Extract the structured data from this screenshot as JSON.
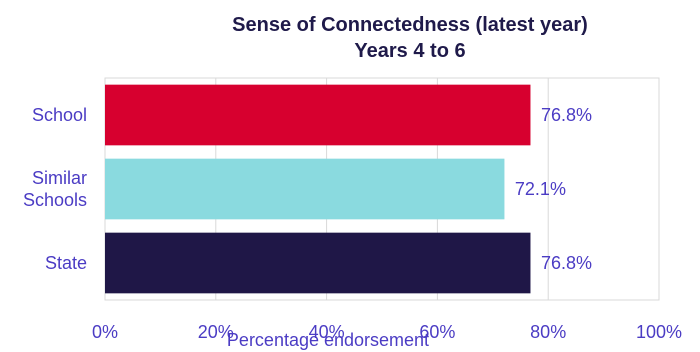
{
  "chart_data": {
    "type": "bar",
    "orientation": "horizontal",
    "title": "Sense of Connectedness (latest year)",
    "subtitle": "Years 4 to 6",
    "xlabel": "Percentage endorsement",
    "ylabel": "",
    "categories": [
      {
        "lines": [
          "School"
        ]
      },
      {
        "lines": [
          "Similar",
          "Schools"
        ]
      },
      {
        "lines": [
          "State"
        ]
      }
    ],
    "values": [
      76.8,
      72.1,
      76.8
    ],
    "value_labels": [
      "76.8%",
      "72.1%",
      "76.8%"
    ],
    "colors": [
      "#d7002f",
      "#8adadf",
      "#1f1747"
    ],
    "xlim": [
      0,
      100
    ],
    "x_ticks": [
      0,
      20,
      40,
      60,
      80,
      100
    ],
    "x_tick_labels": [
      "0%",
      "20%",
      "40%",
      "60%",
      "80%",
      "100%"
    ],
    "grid": true,
    "legend": "none"
  }
}
